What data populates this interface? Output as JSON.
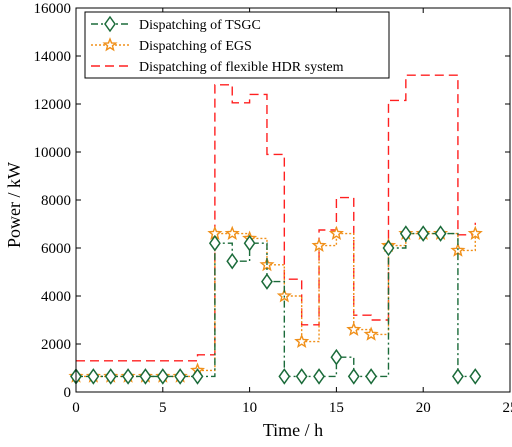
{
  "chart_data": {
    "type": "line",
    "xlabel": "Time / h",
    "ylabel": "Power / kW",
    "xlim": [
      0,
      25
    ],
    "ylim": [
      0,
      16000
    ],
    "xticks": [
      "0",
      "5",
      "10",
      "15",
      "20",
      "25"
    ],
    "yticks": [
      "0",
      "2000",
      "4000",
      "6000",
      "8000",
      "10000",
      "12000",
      "14000",
      "16000"
    ],
    "grid": false,
    "legend_position": "top-left",
    "series": [
      {
        "name": "Dispatching of TSGC",
        "style": "step",
        "marker": "diamond",
        "line": "dash-dot",
        "color": "#1b6b3a",
        "x": [
          0,
          1,
          2,
          3,
          4,
          5,
          6,
          7,
          8,
          9,
          10,
          11,
          12,
          13,
          14,
          15,
          16,
          17,
          18,
          19,
          20,
          21,
          22,
          23
        ],
        "values": [
          650,
          650,
          650,
          650,
          650,
          650,
          650,
          650,
          6200,
          5450,
          6200,
          4600,
          650,
          650,
          650,
          1450,
          650,
          650,
          6000,
          6600,
          6600,
          6600,
          650,
          650
        ]
      },
      {
        "name": "Dispatching of EGS",
        "style": "step",
        "marker": "star",
        "line": "dotted",
        "color": "#f0901a",
        "x": [
          0,
          1,
          2,
          3,
          4,
          5,
          6,
          7,
          8,
          9,
          10,
          11,
          12,
          13,
          14,
          15,
          16,
          17,
          18,
          19,
          20,
          21,
          22,
          23
        ],
        "values": [
          650,
          650,
          650,
          650,
          650,
          650,
          650,
          900,
          6600,
          6600,
          6400,
          5300,
          4000,
          2100,
          6100,
          6600,
          2600,
          2400,
          6100,
          6600,
          6600,
          6600,
          5900,
          6600
        ]
      },
      {
        "name": "Dispatching of flexible HDR system",
        "style": "step",
        "marker": "none",
        "line": "dashed",
        "color": "#ff2020",
        "x": [
          0,
          1,
          2,
          3,
          4,
          5,
          6,
          7,
          8,
          9,
          10,
          11,
          12,
          13,
          14,
          15,
          16,
          17,
          18,
          19,
          20,
          21,
          22,
          23
        ],
        "values": [
          1300,
          1300,
          1300,
          1300,
          1300,
          1300,
          1300,
          1550,
          12800,
          12050,
          12400,
          9900,
          4700,
          2800,
          6750,
          8100,
          3200,
          3000,
          12150,
          13200,
          13200,
          13200,
          6550,
          7050
        ]
      }
    ]
  }
}
